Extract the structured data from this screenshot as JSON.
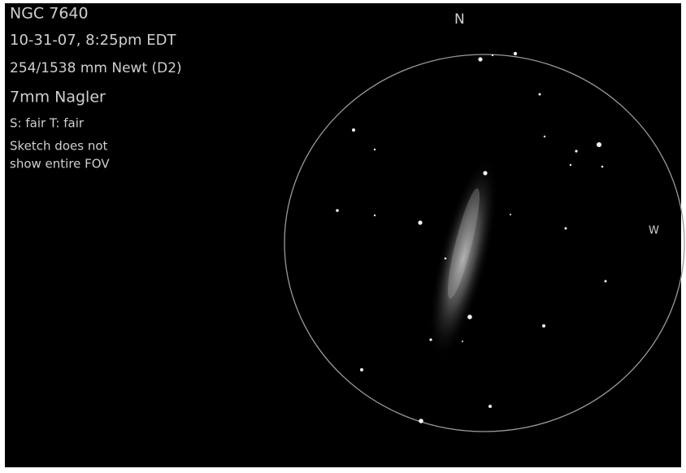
{
  "notes": [
    "NGC 7640",
    "10-31-07, 8:25pm EDT",
    "254/1538 mm Newt (D2)",
    "7mm Nagler",
    "S: fair  T: fair",
    "Sketch does not",
    "show entire FOV"
  ],
  "compass": {
    "north": "N",
    "west": "W"
  }
}
